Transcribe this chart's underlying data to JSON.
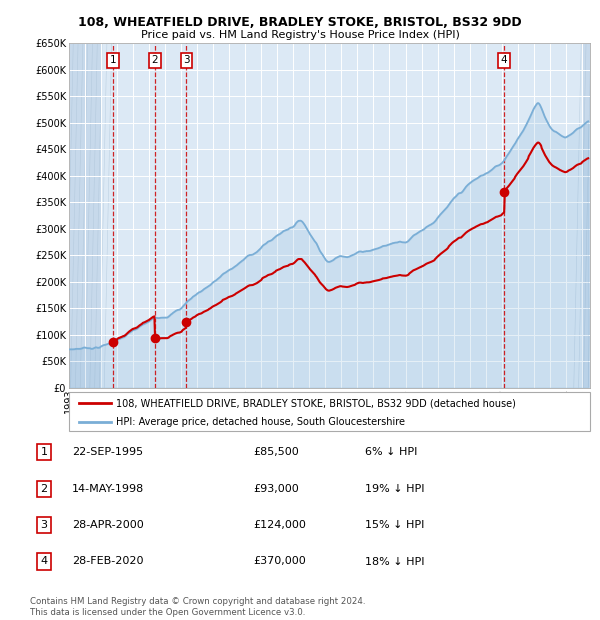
{
  "title": "108, WHEATFIELD DRIVE, BRADLEY STOKE, BRISTOL, BS32 9DD",
  "subtitle": "Price paid vs. HM Land Registry's House Price Index (HPI)",
  "ylim": [
    0,
    650000
  ],
  "yticks": [
    0,
    50000,
    100000,
    150000,
    200000,
    250000,
    300000,
    350000,
    400000,
    450000,
    500000,
    550000,
    600000,
    650000
  ],
  "xlim_start": 1993.0,
  "xlim_end": 2025.5,
  "sale_dates": [
    1995.73,
    1998.37,
    2000.33,
    2020.16
  ],
  "sale_prices": [
    85500,
    93000,
    124000,
    370000
  ],
  "sale_labels": [
    "1",
    "2",
    "3",
    "4"
  ],
  "legend_red": "108, WHEATFIELD DRIVE, BRADLEY STOKE, BRISTOL, BS32 9DD (detached house)",
  "legend_blue": "HPI: Average price, detached house, South Gloucestershire",
  "table_data": [
    [
      "1",
      "22-SEP-1995",
      "£85,500",
      "6% ↓ HPI"
    ],
    [
      "2",
      "14-MAY-1998",
      "£93,000",
      "19% ↓ HPI"
    ],
    [
      "3",
      "28-APR-2000",
      "£124,000",
      "15% ↓ HPI"
    ],
    [
      "4",
      "28-FEB-2020",
      "£370,000",
      "18% ↓ HPI"
    ]
  ],
  "footer": "Contains HM Land Registry data © Crown copyright and database right 2024.\nThis data is licensed under the Open Government Licence v3.0.",
  "bg_color": "#dce9f5",
  "grid_color": "#ffffff",
  "hatch_color": "#c5d8ea",
  "red_line_color": "#cc0000",
  "blue_line_color": "#7aaed6",
  "vline_color": "#cc0000",
  "box_color": "#cc0000"
}
